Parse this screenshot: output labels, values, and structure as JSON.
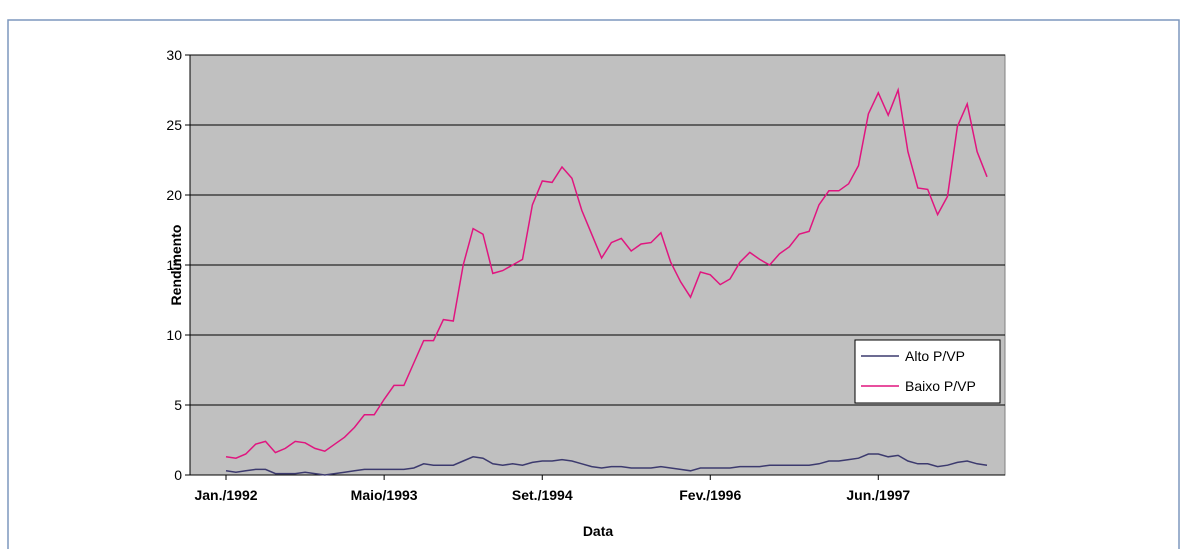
{
  "chart_data": {
    "type": "line",
    "x_label": "Data",
    "y_label": "Rendimento",
    "categories": [
      "Jan./1992",
      null,
      null,
      null,
      null,
      null,
      null,
      null,
      null,
      null,
      null,
      null,
      null,
      null,
      null,
      null,
      "Maio/1993",
      null,
      null,
      null,
      null,
      null,
      null,
      null,
      null,
      null,
      null,
      null,
      null,
      null,
      null,
      null,
      "Set./1994",
      null,
      null,
      null,
      null,
      null,
      null,
      null,
      null,
      null,
      null,
      null,
      null,
      null,
      null,
      null,
      null,
      "Fev./1996",
      null,
      null,
      null,
      null,
      null,
      null,
      null,
      null,
      null,
      null,
      null,
      null,
      null,
      null,
      null,
      null,
      "Jun./1997",
      null,
      null,
      null,
      null,
      null,
      null,
      null,
      null,
      null,
      null,
      null
    ],
    "series": [
      {
        "name": "Alto P/VP",
        "color": "#3c3a6e",
        "values": [
          0.3,
          0.2,
          0.3,
          0.4,
          0.4,
          0.1,
          0.1,
          0.1,
          0.2,
          0.1,
          0.0,
          0.1,
          0.2,
          0.3,
          0.4,
          0.4,
          0.4,
          0.4,
          0.4,
          0.5,
          0.8,
          0.7,
          0.7,
          0.7,
          1.0,
          1.3,
          1.2,
          0.8,
          0.7,
          0.8,
          0.7,
          0.9,
          1.0,
          1.0,
          1.1,
          1.0,
          0.8,
          0.6,
          0.5,
          0.6,
          0.6,
          0.5,
          0.5,
          0.5,
          0.6,
          0.5,
          0.4,
          0.3,
          0.5,
          0.5,
          0.5,
          0.5,
          0.6,
          0.6,
          0.6,
          0.7,
          0.7,
          0.7,
          0.7,
          0.7,
          0.8,
          1.0,
          1.0,
          1.1,
          1.2,
          1.5,
          1.5,
          1.3,
          1.4,
          1.0,
          0.8,
          0.8,
          0.6,
          0.7,
          0.9,
          1.0,
          0.8,
          0.7
        ]
      },
      {
        "name": "Baixo P/VP",
        "color": "#e0157f",
        "values": [
          1.3,
          1.2,
          1.5,
          2.2,
          2.4,
          1.6,
          1.9,
          2.4,
          2.3,
          1.9,
          1.7,
          2.2,
          2.7,
          3.4,
          4.3,
          4.3,
          5.4,
          6.4,
          6.4,
          8.0,
          9.6,
          9.6,
          11.1,
          11.0,
          15.0,
          17.6,
          17.2,
          14.4,
          14.6,
          15.0,
          15.4,
          19.3,
          21.0,
          20.9,
          22.0,
          21.2,
          18.9,
          17.2,
          15.5,
          16.6,
          16.9,
          16.0,
          16.5,
          16.6,
          17.3,
          15.2,
          13.8,
          12.7,
          14.5,
          14.3,
          13.6,
          14.0,
          15.2,
          15.9,
          15.4,
          15.0,
          15.8,
          16.3,
          17.2,
          17.4,
          19.3,
          20.3,
          20.3,
          20.8,
          22.1,
          25.8,
          27.3,
          25.7,
          27.5,
          23.1,
          20.5,
          20.4,
          18.6,
          19.9,
          24.9,
          26.5,
          23.1,
          21.3
        ]
      }
    ],
    "ylim": [
      0,
      30
    ],
    "yticks": [
      0,
      5,
      10,
      15,
      20,
      25,
      30
    ],
    "grid": true,
    "legend": "right",
    "plot_background": "#c0c0c0"
  }
}
